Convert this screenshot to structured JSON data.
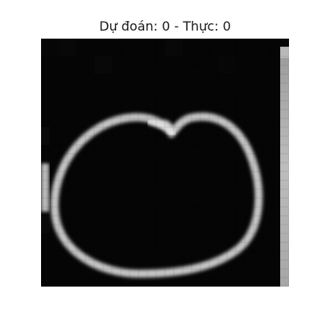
{
  "figure": {
    "title": "Dự đoán: 0 - Thực: 0"
  },
  "image": {
    "content": "grayscale-digit-zero",
    "background_color": "#050505",
    "stroke_color": "#cfcfcf"
  }
}
